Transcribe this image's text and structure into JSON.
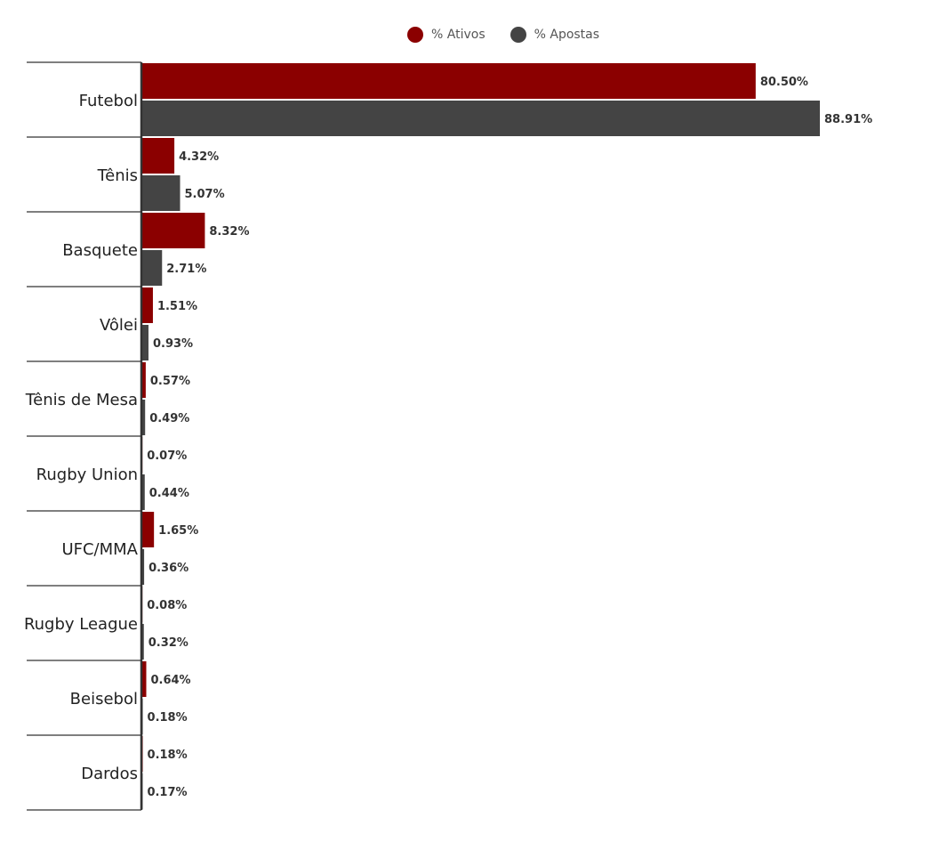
{
  "chart_data": {
    "type": "bar",
    "orientation": "horizontal",
    "categories": [
      "Futebol",
      "Tênis",
      "Basquete",
      "Vôlei",
      "Tênis de Mesa",
      "Rugby Union",
      "UFC/MMA",
      "Rugby League",
      "Beisebol",
      "Dardos"
    ],
    "series": [
      {
        "name": "% Ativos",
        "color": "#8b0000",
        "values": [
          80.5,
          4.32,
          8.32,
          1.51,
          0.57,
          0.07,
          1.65,
          0.08,
          0.64,
          0.18
        ],
        "labels": [
          "80.50%",
          "4.32%",
          "8.32%",
          "1.51%",
          "0.57%",
          "0.07%",
          "1.65%",
          "0.08%",
          "0.64%",
          "0.18%"
        ]
      },
      {
        "name": "% Apostas",
        "color": "#444444",
        "values": [
          88.91,
          5.07,
          2.71,
          0.93,
          0.49,
          0.44,
          0.36,
          0.32,
          0.18,
          0.17
        ],
        "labels": [
          "88.91%",
          "5.07%",
          "2.71%",
          "0.93%",
          "0.49%",
          "0.44%",
          "0.36%",
          "0.32%",
          "0.18%",
          "0.17%"
        ]
      }
    ],
    "xlim": [
      0,
      90
    ],
    "legend_position": "top-center",
    "grid": false
  }
}
